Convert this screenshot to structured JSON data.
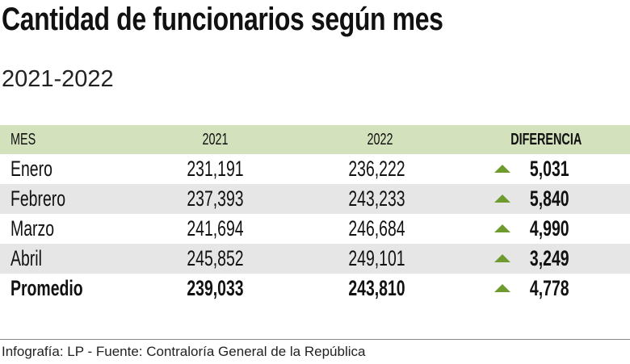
{
  "title": "Cantidad de funcionarios según mes",
  "subtitle": "2021-2022",
  "colors": {
    "header_bg": "#d3e2bd",
    "stripe_bg": "#e6e6e6",
    "up_arrow": "#6e9a2e"
  },
  "chart_data": {
    "type": "table",
    "columns": [
      "MES",
      "2021",
      "2022",
      "DIFERENCIA"
    ],
    "rows": [
      {
        "mes": "Enero",
        "y2021": "231,191",
        "y2022": "236,222",
        "diferencia": "5,031",
        "trend": "up"
      },
      {
        "mes": "Febrero",
        "y2021": "237,393",
        "y2022": "243,233",
        "diferencia": "5,840",
        "trend": "up"
      },
      {
        "mes": "Marzo",
        "y2021": "241,694",
        "y2022": "246,684",
        "diferencia": "4,990",
        "trend": "up"
      },
      {
        "mes": "Abril",
        "y2021": "245,852",
        "y2022": "249,101",
        "diferencia": "3,249",
        "trend": "up"
      },
      {
        "mes": "Promedio",
        "y2021": "239,033",
        "y2022": "243,810",
        "diferencia": "4,778",
        "trend": "up"
      }
    ]
  },
  "source": "Infografía: LP - Fuente: Contraloría General de la República"
}
